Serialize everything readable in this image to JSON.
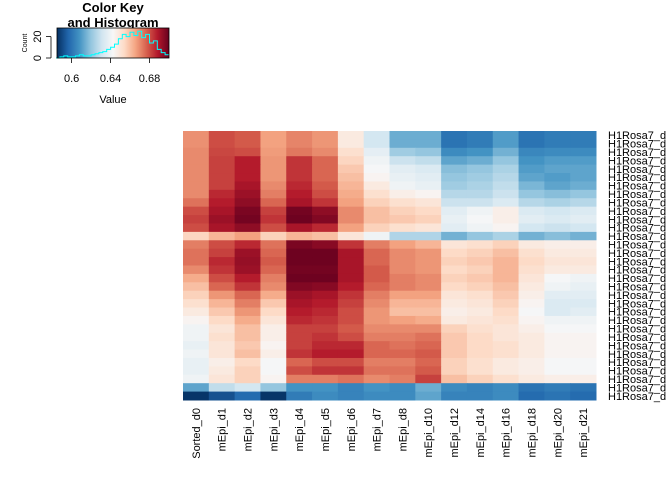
{
  "chart_data": {
    "type": "heatmap",
    "color_key": {
      "title_line1": "Color Key",
      "title_line2": "and Histogram",
      "xlabel": "Value",
      "ylabel": "Count",
      "x_ticks": [
        "0.6",
        "0.64",
        "0.68"
      ],
      "x_tick_values": [
        0.6,
        0.64,
        0.68
      ],
      "y_ticks": [
        "0",
        "20"
      ],
      "y_tick_values": [
        0,
        20
      ],
      "xlim": [
        0.585,
        0.7
      ],
      "ylim": [
        0,
        28
      ],
      "histogram_color": "#00ffff",
      "histogram_x": [
        0.586,
        0.59,
        0.594,
        0.598,
        0.602,
        0.606,
        0.61,
        0.614,
        0.618,
        0.622,
        0.626,
        0.63,
        0.634,
        0.638,
        0.642,
        0.646,
        0.65,
        0.654,
        0.658,
        0.662,
        0.666,
        0.67,
        0.674,
        0.678,
        0.682,
        0.686,
        0.69,
        0.694,
        0.698
      ],
      "histogram_counts": [
        0,
        1,
        2,
        1,
        1,
        2,
        3,
        2,
        2,
        3,
        4,
        5,
        6,
        8,
        10,
        13,
        18,
        22,
        20,
        24,
        21,
        25,
        19,
        22,
        14,
        16,
        8,
        5,
        3
      ]
    },
    "columns": [
      "Sorted_d0",
      "mEpi_d1",
      "mEpi_d2",
      "mEpi_d3",
      "mEpi_d4",
      "mEpi_d5",
      "mEpi_d6",
      "mEpi_d7",
      "mEpi_d8",
      "mEpi_d10",
      "mEpi_d12",
      "mEpi_d14",
      "mEpi_d16",
      "mEpi_d18",
      "mEpi_d20",
      "mEpi_d21"
    ],
    "row_labels": [
      "H1Rosa7_d",
      "H1Rosa7_d",
      "H1Rosa7_d",
      "H1Rosa7_d",
      "H1Rosa7_d",
      "H1Rosa7_d",
      "H1Rosa7_d",
      "H1Rosa7_d",
      "H1Rosa7_d",
      "H1Rosa7_d",
      "H1Rosa7_d",
      "H1Rosa7_d",
      "H1Rosa7_d",
      "H1Rosa7_d",
      "H1Rosa7_d",
      "H1Rosa7_d",
      "H1Rosa7_d",
      "H1Rosa7_d",
      "H1Rosa7_d",
      "H1Rosa7_d",
      "H1Rosa7_d",
      "H1Rosa7_d",
      "H1Rosa7_d",
      "H1Rosa7_d",
      "H1Rosa7_d",
      "H1Rosa7_d",
      "H1Rosa7_d",
      "H1Rosa7_d",
      "H1Rosa7_d",
      "H1Rosa7_d",
      "H1Rosa7_d",
      "H1Rosa7_d"
    ],
    "value_range": [
      0.585,
      0.7
    ],
    "palette": [
      "#053061",
      "#2166ac",
      "#4393c3",
      "#92c5de",
      "#d1e5f0",
      "#f7f7f7",
      "#fddbc7",
      "#f4a582",
      "#d6604d",
      "#b2182b",
      "#67001f"
    ],
    "values": [
      [
        0.669,
        0.68,
        0.678,
        0.666,
        0.671,
        0.668,
        0.648,
        0.632,
        0.614,
        0.614,
        0.6,
        0.602,
        0.61,
        0.6,
        0.602,
        0.602
      ],
      [
        0.669,
        0.68,
        0.678,
        0.666,
        0.671,
        0.668,
        0.648,
        0.632,
        0.614,
        0.614,
        0.6,
        0.602,
        0.61,
        0.6,
        0.602,
        0.602
      ],
      [
        0.67,
        0.681,
        0.68,
        0.667,
        0.673,
        0.67,
        0.652,
        0.637,
        0.622,
        0.62,
        0.606,
        0.608,
        0.615,
        0.605,
        0.606,
        0.606
      ],
      [
        0.67,
        0.682,
        0.688,
        0.668,
        0.684,
        0.676,
        0.655,
        0.64,
        0.63,
        0.628,
        0.612,
        0.614,
        0.62,
        0.608,
        0.61,
        0.61
      ],
      [
        0.67,
        0.682,
        0.688,
        0.668,
        0.684,
        0.676,
        0.658,
        0.642,
        0.636,
        0.634,
        0.618,
        0.62,
        0.624,
        0.61,
        0.612,
        0.612
      ],
      [
        0.67,
        0.682,
        0.688,
        0.668,
        0.684,
        0.676,
        0.66,
        0.644,
        0.638,
        0.636,
        0.62,
        0.622,
        0.626,
        0.612,
        0.61,
        0.612
      ],
      [
        0.67,
        0.682,
        0.69,
        0.67,
        0.686,
        0.678,
        0.662,
        0.648,
        0.64,
        0.638,
        0.622,
        0.624,
        0.628,
        0.616,
        0.612,
        0.614
      ],
      [
        0.67,
        0.686,
        0.692,
        0.672,
        0.688,
        0.68,
        0.664,
        0.652,
        0.646,
        0.644,
        0.626,
        0.626,
        0.63,
        0.62,
        0.618,
        0.62
      ],
      [
        0.674,
        0.688,
        0.694,
        0.676,
        0.69,
        0.684,
        0.666,
        0.656,
        0.652,
        0.65,
        0.63,
        0.63,
        0.634,
        0.626,
        0.624,
        0.626
      ],
      [
        0.68,
        0.69,
        0.697,
        0.682,
        0.698,
        0.694,
        0.67,
        0.66,
        0.656,
        0.654,
        0.636,
        0.64,
        0.646,
        0.634,
        0.632,
        0.634
      ],
      [
        0.682,
        0.692,
        0.698,
        0.684,
        0.699,
        0.696,
        0.67,
        0.66,
        0.658,
        0.656,
        0.638,
        0.642,
        0.646,
        0.636,
        0.634,
        0.636
      ],
      [
        0.68,
        0.69,
        0.694,
        0.68,
        0.69,
        0.686,
        0.666,
        0.656,
        0.652,
        0.65,
        0.636,
        0.64,
        0.644,
        0.632,
        0.63,
        0.632
      ],
      [
        0.655,
        0.662,
        0.666,
        0.656,
        0.662,
        0.66,
        0.65,
        0.64,
        0.625,
        0.625,
        0.615,
        0.62,
        0.624,
        0.615,
        0.618,
        0.615
      ],
      [
        0.672,
        0.68,
        0.686,
        0.674,
        0.697,
        0.695,
        0.684,
        0.672,
        0.666,
        0.662,
        0.65,
        0.652,
        0.656,
        0.648,
        0.646,
        0.646
      ],
      [
        0.674,
        0.682,
        0.692,
        0.676,
        0.699,
        0.699,
        0.69,
        0.676,
        0.67,
        0.668,
        0.654,
        0.656,
        0.66,
        0.652,
        0.648,
        0.648
      ],
      [
        0.674,
        0.686,
        0.693,
        0.678,
        0.699,
        0.699,
        0.69,
        0.676,
        0.67,
        0.668,
        0.656,
        0.658,
        0.662,
        0.654,
        0.65,
        0.65
      ],
      [
        0.67,
        0.684,
        0.692,
        0.676,
        0.698,
        0.698,
        0.69,
        0.678,
        0.67,
        0.668,
        0.654,
        0.656,
        0.662,
        0.652,
        0.648,
        0.648
      ],
      [
        0.664,
        0.68,
        0.688,
        0.672,
        0.699,
        0.699,
        0.69,
        0.678,
        0.672,
        0.67,
        0.656,
        0.658,
        0.662,
        0.65,
        0.642,
        0.64
      ],
      [
        0.66,
        0.676,
        0.684,
        0.67,
        0.696,
        0.695,
        0.688,
        0.676,
        0.672,
        0.67,
        0.654,
        0.656,
        0.66,
        0.648,
        0.64,
        0.638
      ],
      [
        0.656,
        0.668,
        0.676,
        0.664,
        0.692,
        0.69,
        0.684,
        0.672,
        0.666,
        0.666,
        0.65,
        0.652,
        0.658,
        0.646,
        0.636,
        0.636
      ],
      [
        0.652,
        0.662,
        0.672,
        0.658,
        0.69,
        0.688,
        0.682,
        0.67,
        0.662,
        0.662,
        0.648,
        0.65,
        0.656,
        0.644,
        0.634,
        0.634
      ],
      [
        0.648,
        0.658,
        0.668,
        0.654,
        0.688,
        0.686,
        0.68,
        0.668,
        0.66,
        0.66,
        0.646,
        0.648,
        0.654,
        0.642,
        0.634,
        0.636
      ],
      [
        0.644,
        0.654,
        0.664,
        0.65,
        0.686,
        0.684,
        0.68,
        0.668,
        0.666,
        0.664,
        0.648,
        0.65,
        0.652,
        0.644,
        0.64,
        0.64
      ],
      [
        0.64,
        0.65,
        0.66,
        0.646,
        0.682,
        0.682,
        0.678,
        0.67,
        0.67,
        0.67,
        0.656,
        0.652,
        0.65,
        0.646,
        0.642,
        0.642
      ],
      [
        0.64,
        0.652,
        0.66,
        0.646,
        0.682,
        0.684,
        0.68,
        0.672,
        0.672,
        0.674,
        0.658,
        0.654,
        0.65,
        0.648,
        0.644,
        0.644
      ],
      [
        0.638,
        0.65,
        0.658,
        0.644,
        0.682,
        0.686,
        0.686,
        0.676,
        0.674,
        0.676,
        0.658,
        0.654,
        0.652,
        0.648,
        0.644,
        0.644
      ],
      [
        0.64,
        0.65,
        0.66,
        0.646,
        0.684,
        0.688,
        0.688,
        0.676,
        0.676,
        0.678,
        0.658,
        0.654,
        0.652,
        0.648,
        0.644,
        0.644
      ],
      [
        0.638,
        0.646,
        0.654,
        0.642,
        0.676,
        0.68,
        0.68,
        0.672,
        0.672,
        0.676,
        0.656,
        0.652,
        0.648,
        0.646,
        0.642,
        0.642
      ],
      [
        0.638,
        0.648,
        0.656,
        0.642,
        0.68,
        0.684,
        0.684,
        0.674,
        0.674,
        0.678,
        0.656,
        0.652,
        0.648,
        0.646,
        0.642,
        0.642
      ],
      [
        0.64,
        0.65,
        0.656,
        0.644,
        0.672,
        0.672,
        0.674,
        0.67,
        0.672,
        0.682,
        0.66,
        0.656,
        0.652,
        0.648,
        0.646,
        0.646
      ],
      [
        0.612,
        0.628,
        0.632,
        0.62,
        0.608,
        0.608,
        0.604,
        0.608,
        0.606,
        0.614,
        0.606,
        0.604,
        0.606,
        0.6,
        0.602,
        0.6
      ],
      [
        0.586,
        0.592,
        0.598,
        0.586,
        0.602,
        0.606,
        0.604,
        0.606,
        0.606,
        0.612,
        0.604,
        0.604,
        0.606,
        0.598,
        0.6,
        0.598
      ]
    ]
  }
}
